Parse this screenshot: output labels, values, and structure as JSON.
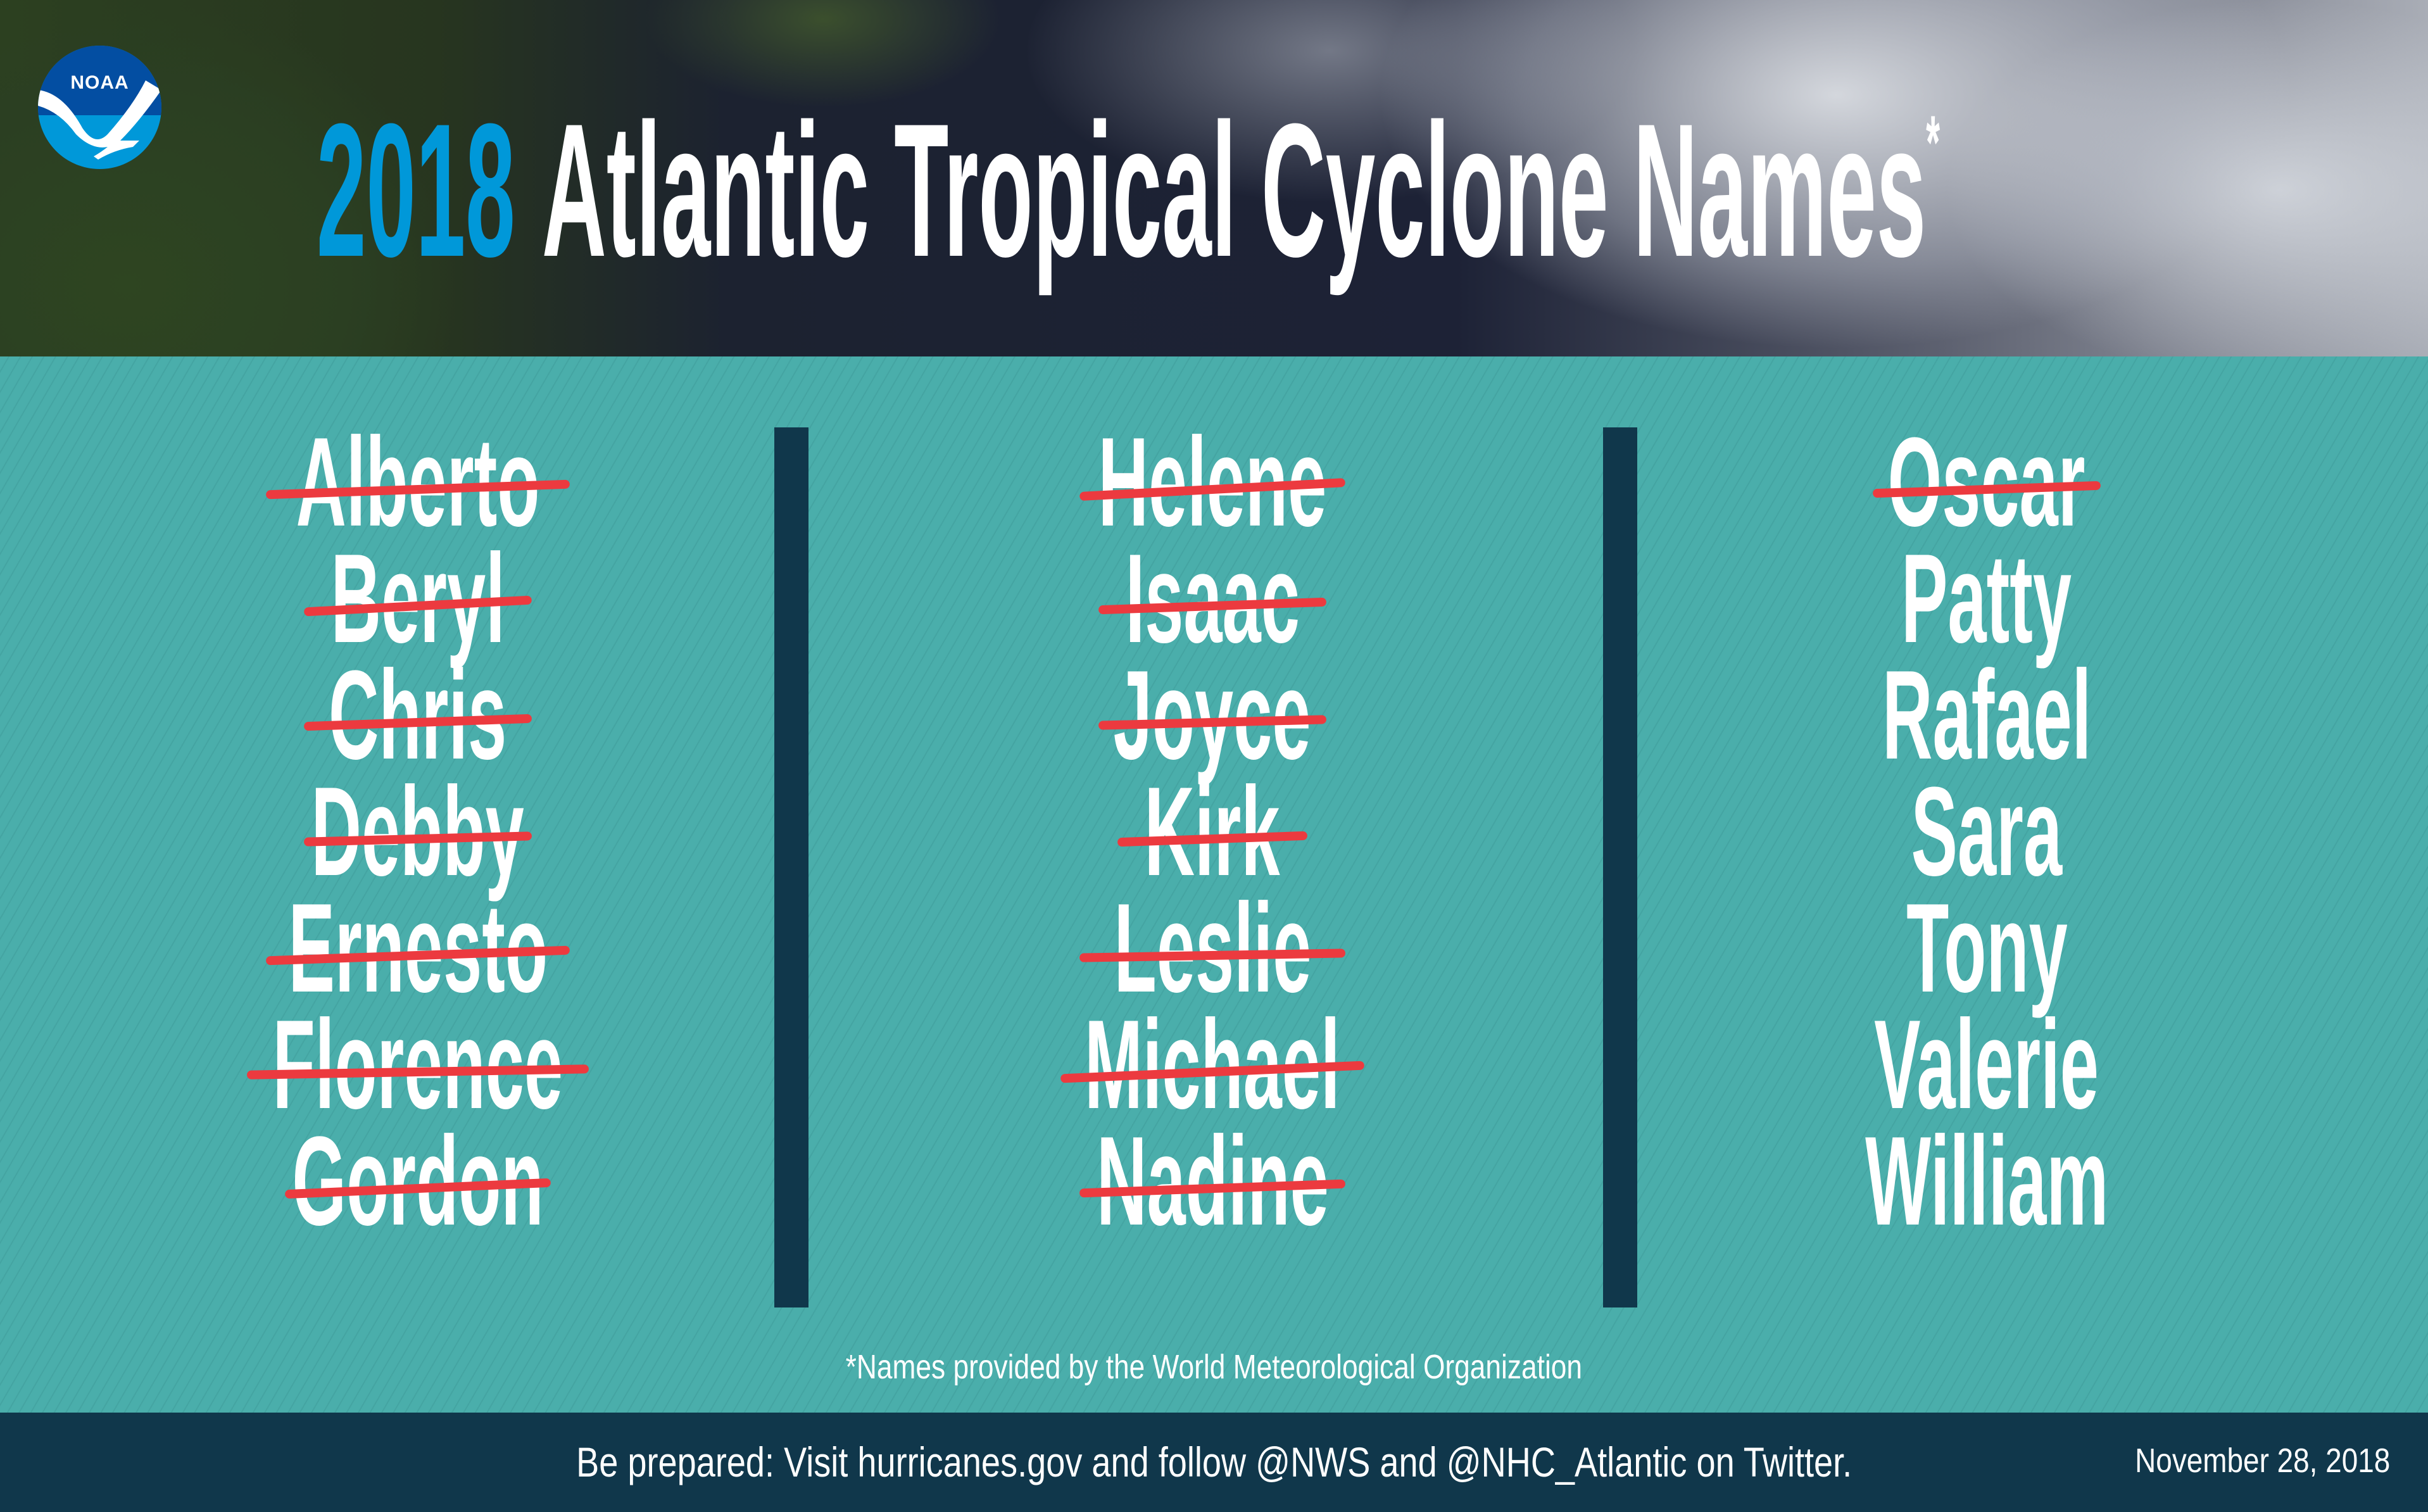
{
  "logo": {
    "text": "NOAA"
  },
  "header": {
    "year": "2018",
    "title": "Atlantic Tropical Cyclone Names",
    "asterisk": "*"
  },
  "colors": {
    "accent_blue": "#0098d9",
    "teal": "#4aaeab",
    "dark": "#10374b",
    "strike_red": "#ec3a3f"
  },
  "columns": [
    {
      "names": [
        {
          "name": "Alberto",
          "struck": true
        },
        {
          "name": "Beryl",
          "struck": true
        },
        {
          "name": "Chris",
          "struck": true
        },
        {
          "name": "Debby",
          "struck": true
        },
        {
          "name": "Ernesto",
          "struck": true
        },
        {
          "name": "Florence",
          "struck": true
        },
        {
          "name": "Gordon",
          "struck": true
        }
      ]
    },
    {
      "names": [
        {
          "name": "Helene",
          "struck": true
        },
        {
          "name": "Isaac",
          "struck": true
        },
        {
          "name": "Joyce",
          "struck": true
        },
        {
          "name": "Kirk",
          "struck": true
        },
        {
          "name": "Leslie",
          "struck": true
        },
        {
          "name": "Michael",
          "struck": true
        },
        {
          "name": "Nadine",
          "struck": true
        }
      ]
    },
    {
      "names": [
        {
          "name": "Oscar",
          "struck": true
        },
        {
          "name": "Patty",
          "struck": false
        },
        {
          "name": "Rafael",
          "struck": false
        },
        {
          "name": "Sara",
          "struck": false
        },
        {
          "name": "Tony",
          "struck": false
        },
        {
          "name": "Valerie",
          "struck": false
        },
        {
          "name": "William",
          "struck": false
        }
      ]
    }
  ],
  "footnote": "*Names provided by the World Meteorological Organization",
  "footer": {
    "message": "Be prepared: Visit hurricanes.gov and follow @NWS and @NHC_Atlantic on Twitter.",
    "date": "November 28, 2018"
  }
}
